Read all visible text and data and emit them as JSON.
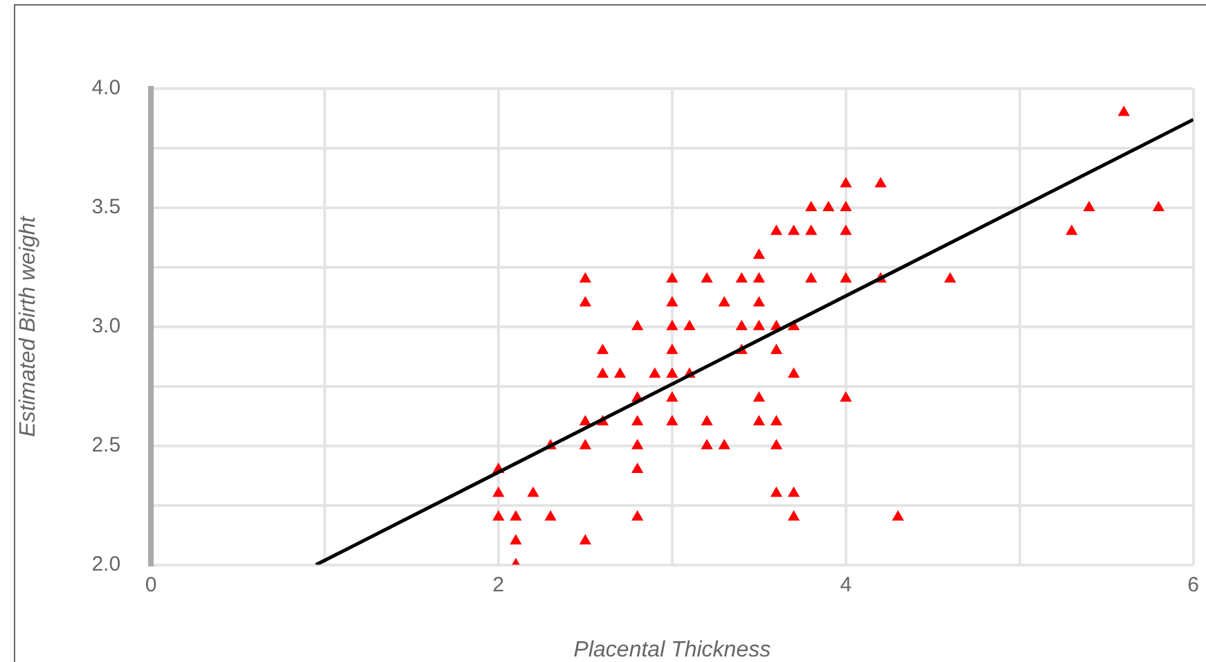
{
  "chart_data": {
    "type": "scatter",
    "xlabel": "Placental Thickness",
    "ylabel": "Estimated Birth weight",
    "xlim": [
      0,
      6
    ],
    "ylim": [
      2,
      4
    ],
    "xticks": [
      0,
      {
        "value": 1,
        "label": null
      },
      2,
      {
        "value": 3,
        "label": null
      },
      4,
      {
        "value": 5,
        "label": null
      },
      6
    ],
    "yticks": [
      {
        "value": 2,
        "label": "2.0"
      },
      {
        "value": 2.25,
        "label": null
      },
      {
        "value": 2.5,
        "label": "2.5"
      },
      {
        "value": 2.75,
        "label": null
      },
      {
        "value": 3,
        "label": "3.0"
      },
      {
        "value": 3.25,
        "label": null
      },
      {
        "value": 3.5,
        "label": "3.5"
      },
      {
        "value": 3.75,
        "label": null
      },
      {
        "value": 4,
        "label": "4.0"
      }
    ],
    "grid": true,
    "legend": false,
    "marker": "triangle",
    "series": [
      {
        "color": "#ff0000",
        "x": [
          2.0,
          2.0,
          2.0,
          2.1,
          2.1,
          2.1,
          2.2,
          2.3,
          2.3,
          2.5,
          2.5,
          2.5,
          2.5,
          2.5,
          2.6,
          2.6,
          2.6,
          2.7,
          2.8,
          2.8,
          2.8,
          2.8,
          2.8,
          2.8,
          2.9,
          3.0,
          3.0,
          3.0,
          3.0,
          3.0,
          3.0,
          3.0,
          3.1,
          3.1,
          3.2,
          3.2,
          3.2,
          3.3,
          3.3,
          3.4,
          3.4,
          3.4,
          3.5,
          3.5,
          3.5,
          3.5,
          3.5,
          3.5,
          3.6,
          3.6,
          3.6,
          3.6,
          3.6,
          3.6,
          3.7,
          3.7,
          3.7,
          3.7,
          3.7,
          3.8,
          3.8,
          3.8,
          3.9,
          4.0,
          4.0,
          4.0,
          4.0,
          4.0,
          4.2,
          4.2,
          4.3,
          4.6,
          5.3,
          5.4,
          5.6,
          5.8
        ],
        "values": [
          2.4,
          2.3,
          2.2,
          2.2,
          2.1,
          2.0,
          2.3,
          2.2,
          2.5,
          3.2,
          3.1,
          2.6,
          2.5,
          2.1,
          2.9,
          2.8,
          2.6,
          2.8,
          3.0,
          2.7,
          2.6,
          2.5,
          2.4,
          2.2,
          2.8,
          3.2,
          3.1,
          3.0,
          2.9,
          2.8,
          2.7,
          2.6,
          3.0,
          2.8,
          3.2,
          2.6,
          2.5,
          3.1,
          2.5,
          3.2,
          3.0,
          2.9,
          3.3,
          3.2,
          3.1,
          3.0,
          2.7,
          2.6,
          3.4,
          3.0,
          2.9,
          2.6,
          2.5,
          2.3,
          3.4,
          3.0,
          2.8,
          2.3,
          2.2,
          3.5,
          3.4,
          3.2,
          3.5,
          3.6,
          3.5,
          3.4,
          3.2,
          2.7,
          3.6,
          3.2,
          2.2,
          3.2,
          3.4,
          3.5,
          3.9,
          3.5
        ]
      },
      {
        "type": "line",
        "color": "#000000",
        "marker": "none",
        "line_style": "solid",
        "x": [
          0.95,
          6
        ],
        "values": [
          2.0,
          3.87
        ]
      }
    ]
  }
}
